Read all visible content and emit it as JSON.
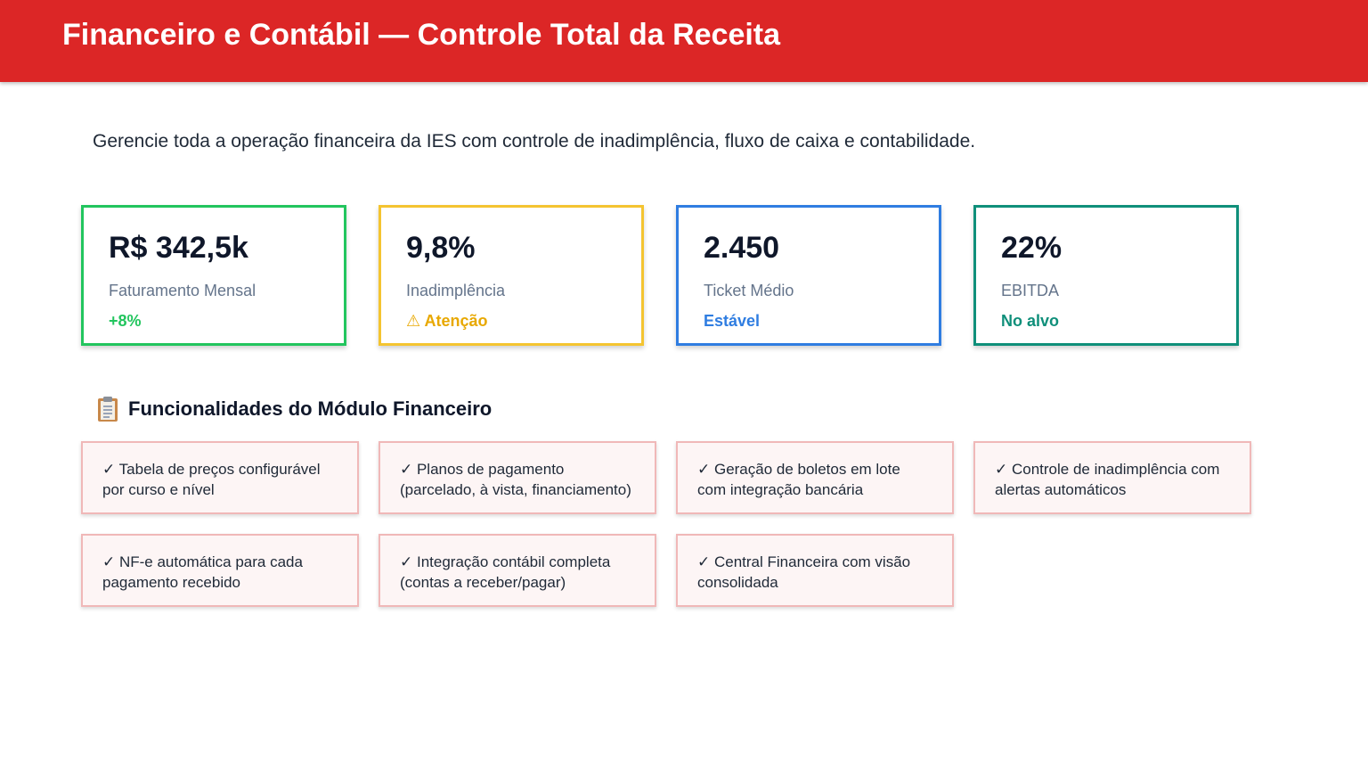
{
  "header": {
    "title": "Financeiro e Contábil — Controle Total da Receita"
  },
  "subtitle": "Gerencie toda a operação financeira da IES com controle de inadimplência, fluxo de caixa e contabilidade.",
  "kpis": [
    {
      "value": "R$ 342,5k",
      "label": "Faturamento Mensal",
      "status": "+8%",
      "color": "#22c55e"
    },
    {
      "value": "9,8%",
      "label": "Inadimplência",
      "status": "⚠ Atenção",
      "color": "#f4c430",
      "status_color": "#e8a800"
    },
    {
      "value": "2.450",
      "label": "Ticket Médio",
      "status": "Estável",
      "color": "#2f7de1"
    },
    {
      "value": "22%",
      "label": "EBITDA",
      "status": "No alvo",
      "color": "#0f8f7a"
    }
  ],
  "section": {
    "icon": "clipboard-icon",
    "title": "Funcionalidades do Módulo Financeiro"
  },
  "features": [
    "✓ Tabela de preços configurável por curso e nível",
    "✓ Planos de pagamento (parcelado, à vista, financiamento)",
    "✓ Geração de boletos em lote com integração bancária",
    "✓ Controle de inadimplência com alertas automáticos",
    "✓ NF-e automática para cada pagamento recebido",
    "✓ Integração contábil completa (contas a receber/pagar)",
    "✓ Central Financeira com visão consolidada"
  ]
}
